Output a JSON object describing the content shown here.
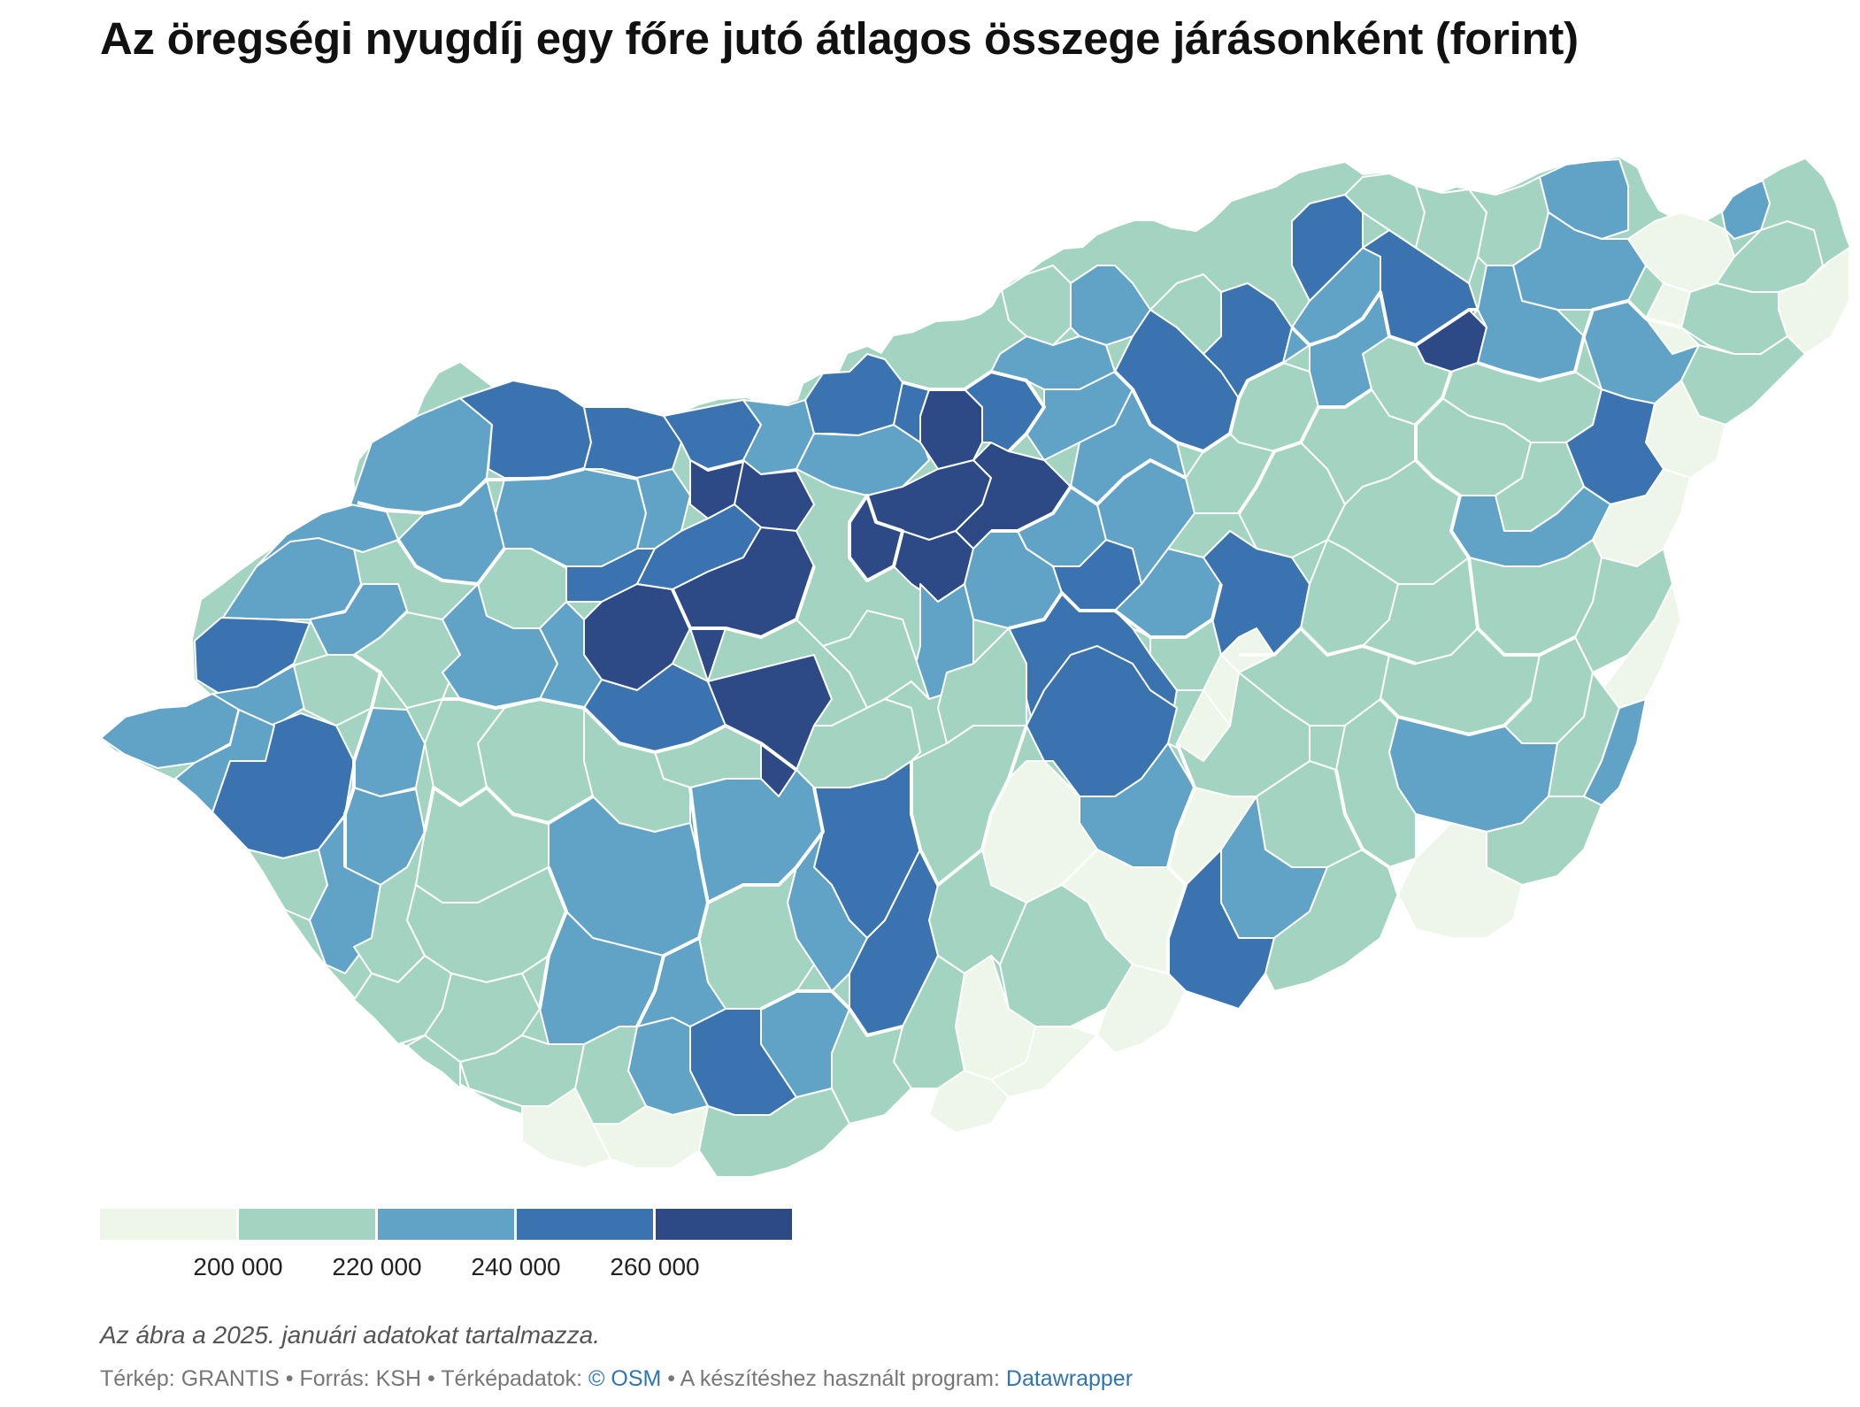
{
  "title": "Az öregségi nyugdíj egy főre jutó átlagos összege járásonként (forint)",
  "legend": {
    "colors": [
      "#eef6e9",
      "#a3d4c1",
      "#61a3c7",
      "#3a73b0",
      "#2d4a86"
    ],
    "labels": [
      "200 000",
      "220 000",
      "240 000",
      "260 000"
    ]
  },
  "note": "Az ábra a 2025. januári adatokat tartalmazza.",
  "credits": {
    "map": "Térkép: GRANTIS",
    "source": "Forrás: KSH",
    "mapdata_prefix": "Térképadatok:",
    "mapdata_link": "© OSM",
    "program_prefix": "A készítéshez használt program:",
    "program_link": "Datawrapper",
    "separator": "•"
  }
}
